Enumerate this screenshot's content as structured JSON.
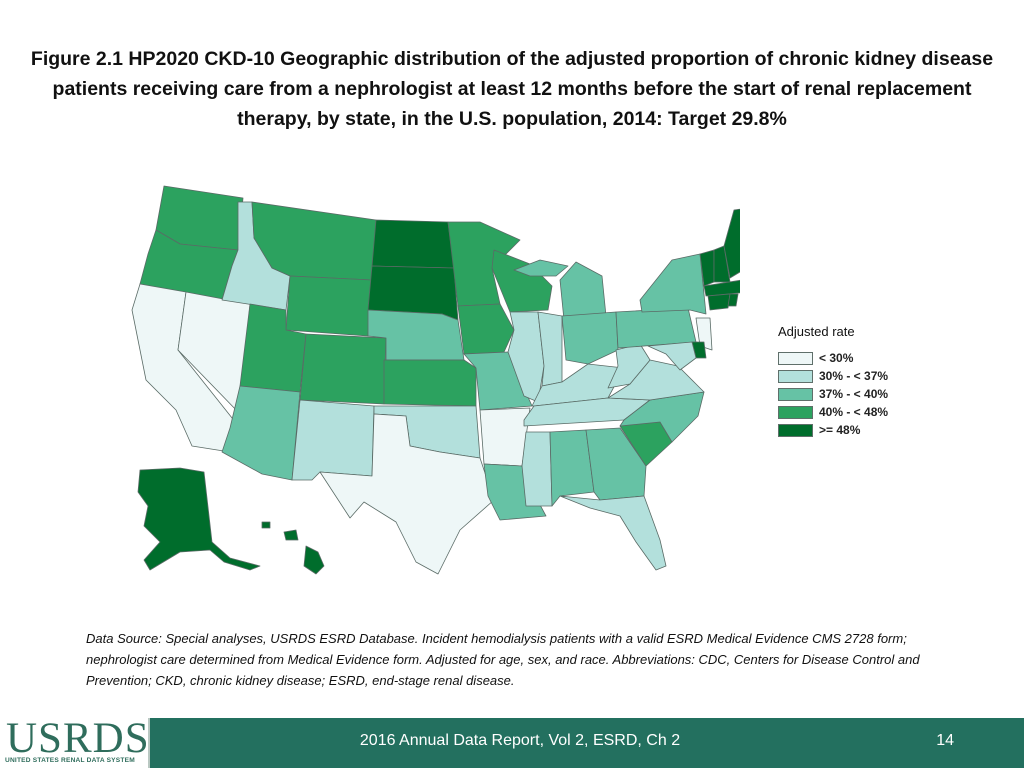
{
  "title": "Figure 2.1  HP2020 CKD-10 Geographic distribution of the adjusted proportion of chronic kidney disease patients receiving care from a nephrologist at least 12 months before the start of renal replacement therapy, by state, in the U.S. population, 2014: Target 29.8%",
  "legend": {
    "title": "Adjusted rate",
    "items": [
      {
        "label": "< 30%",
        "color": "#eef7f7"
      },
      {
        "label": "30% - < 37%",
        "color": "#b3e0dc"
      },
      {
        "label": "37% - < 40%",
        "color": "#66c2a5"
      },
      {
        "label": "40% - < 48%",
        "color": "#2ca25f"
      },
      {
        "label": ">= 48%",
        "color": "#006d2c"
      }
    ]
  },
  "map_categories": {
    "WA": 3,
    "OR": 3,
    "CA": 0,
    "NV": 0,
    "ID": 1,
    "MT": 3,
    "WY": 3,
    "UT": 3,
    "AZ": 2,
    "CO": 3,
    "NM": 1,
    "ND": 4,
    "SD": 4,
    "NE": 2,
    "KS": 3,
    "OK": 1,
    "TX": 0,
    "MN": 3,
    "IA": 3,
    "MO": 2,
    "AR": 0,
    "LA": 2,
    "WI": 3,
    "IL": 1,
    "MS": 1,
    "MI": 2,
    "IN": 1,
    "KY": 1,
    "TN": 1,
    "AL": 2,
    "OH": 2,
    "WV": 1,
    "GA": 2,
    "FL": 1,
    "SC": 3,
    "NC": 2,
    "VA": 1,
    "PA": 2,
    "NY": 2,
    "ME": 4,
    "NH": 4,
    "VT": 4,
    "MA": 4,
    "CT": 4,
    "RI": 4,
    "NJ": 0,
    "DE": 4,
    "MD": 1,
    "AK": 4,
    "HI": 4
  },
  "source": "Data Source: Special analyses, USRDS ESRD Database. Incident hemodialysis patients with a valid ESRD Medical Evidence CMS 2728 form; nephrologist care determined from Medical Evidence form. Adjusted for age, sex, and race. Abbreviations: CDC, Centers for Disease Control and Prevention; CKD, chronic kidney disease; ESRD, end-stage renal disease.",
  "footer": {
    "logo_text": "USRDS",
    "logo_subtext": "UNITED STATES RENAL DATA SYSTEM",
    "center_text": "2016 Annual Data Report, Vol 2, ESRD, Ch 2",
    "page_number": "14"
  }
}
